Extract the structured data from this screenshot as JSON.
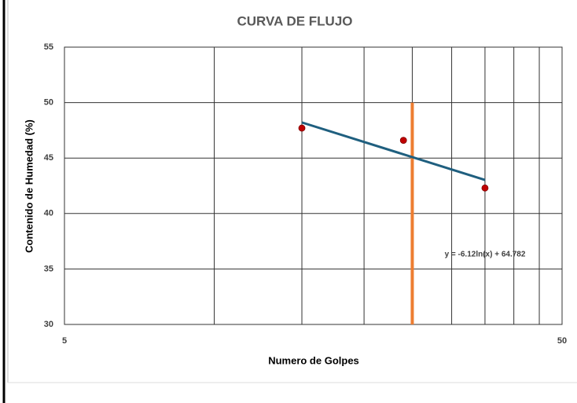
{
  "chart_data": {
    "type": "scatter",
    "title": "CURVA DE FLUJO",
    "xlabel": "Numero de Golpes",
    "ylabel": "Contenido de Humedad (%)",
    "log_x": true,
    "xlim": [
      5,
      50
    ],
    "xticks": [
      5,
      50
    ],
    "xgrid_minor": [
      10,
      15,
      20,
      25,
      30,
      35,
      40,
      45
    ],
    "ylim": [
      30,
      55
    ],
    "yticks": [
      30,
      35,
      40,
      45,
      50,
      55
    ],
    "grid": true,
    "points": {
      "x": [
        15,
        24,
        35
      ],
      "values": [
        47.7,
        46.6,
        42.3
      ],
      "color": "#c00000"
    },
    "trendline": {
      "x": [
        15,
        35
      ],
      "values": [
        48.21,
        43.03
      ],
      "color": "#1f5f7f",
      "label": "y = -6.12ln(x) + 64.782"
    },
    "reference_line": {
      "x": [
        25,
        25
      ],
      "values": [
        30,
        50
      ],
      "color": "#ed7d31"
    }
  }
}
